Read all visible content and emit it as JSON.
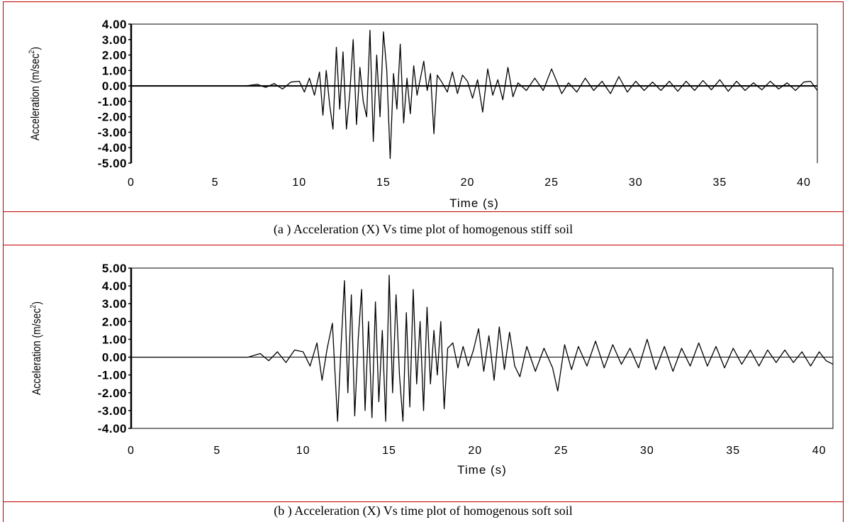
{
  "chart_data": [
    {
      "type": "line",
      "caption": "(a ) Acceleration (X) Vs time plot of homogenous stiff soil",
      "xlabel": "Time (s)",
      "ylabel_main": "Acceleration (m/sec",
      "ylabel_sup": "2",
      "ylabel_end": ")",
      "xlim": [
        0,
        40.8
      ],
      "ylim": [
        -5,
        4
      ],
      "xticks": [
        0,
        5,
        10,
        15,
        20,
        25,
        30,
        35,
        40
      ],
      "yticks": [
        4,
        3,
        2,
        1,
        0,
        -1,
        -2,
        -3,
        -4,
        -5
      ],
      "ytick_labels": [
        "4.00",
        "3.00",
        "2.00",
        "1.00",
        "0.00",
        "-1.00",
        "-2.00",
        "-3.00",
        "-4.00",
        "-5.00"
      ],
      "grid": false,
      "box": "open",
      "series": [
        {
          "color": "#000000",
          "x": [
            6.8,
            7.5,
            8.0,
            8.5,
            9.0,
            9.5,
            10.0,
            10.3,
            10.6,
            10.9,
            11.2,
            11.4,
            11.6,
            11.8,
            12.0,
            12.2,
            12.4,
            12.6,
            12.8,
            13.0,
            13.2,
            13.4,
            13.6,
            13.8,
            14.0,
            14.2,
            14.4,
            14.6,
            14.8,
            15.0,
            15.2,
            15.4,
            15.6,
            15.8,
            16.0,
            16.2,
            16.4,
            16.6,
            16.8,
            17.0,
            17.2,
            17.4,
            17.6,
            17.8,
            18.0,
            18.2,
            18.5,
            18.8,
            19.1,
            19.4,
            19.7,
            20.0,
            20.3,
            20.6,
            20.9,
            21.2,
            21.5,
            21.8,
            22.1,
            22.4,
            22.7,
            23.0,
            23.5,
            24.0,
            24.5,
            25.0,
            25.3,
            25.6,
            26.0,
            26.5,
            27.0,
            27.5,
            28.0,
            28.5,
            29.0,
            29.5,
            30.0,
            30.5,
            31.0,
            31.5,
            32.0,
            32.5,
            33.0,
            33.5,
            34.0,
            34.5,
            35.0,
            35.5,
            36.0,
            36.5,
            37.0,
            37.5,
            38.0,
            38.5,
            39.0,
            39.5,
            40.0,
            40.4,
            40.8
          ],
          "y": [
            0.0,
            0.1,
            -0.1,
            0.15,
            -0.2,
            0.25,
            0.3,
            -0.4,
            0.5,
            -0.6,
            0.9,
            -1.9,
            1.0,
            -1.2,
            -2.8,
            2.5,
            -1.5,
            2.2,
            -2.8,
            -0.5,
            3.0,
            -2.5,
            1.2,
            -1.0,
            -2.0,
            3.6,
            -3.6,
            2.0,
            -2.0,
            3.5,
            1.0,
            -4.7,
            0.8,
            -1.5,
            2.7,
            -2.4,
            0.5,
            -1.8,
            1.3,
            -0.6,
            0.5,
            1.6,
            -0.3,
            0.8,
            -3.1,
            0.7,
            0.2,
            -0.4,
            0.9,
            -0.5,
            0.7,
            0.3,
            -0.8,
            0.4,
            -1.7,
            1.1,
            -0.6,
            0.4,
            -0.9,
            1.2,
            -0.7,
            0.2,
            -0.3,
            0.5,
            -0.3,
            1.1,
            0.3,
            -0.5,
            0.2,
            -0.4,
            0.5,
            -0.3,
            0.3,
            -0.5,
            0.6,
            -0.4,
            0.3,
            -0.3,
            0.25,
            -0.3,
            0.3,
            -0.35,
            0.3,
            -0.3,
            0.35,
            -0.25,
            0.4,
            -0.35,
            0.3,
            -0.3,
            0.2,
            -0.25,
            0.3,
            -0.2,
            0.2,
            -0.3,
            0.25,
            0.3,
            -0.3
          ]
        }
      ]
    },
    {
      "type": "line",
      "caption": "(b ) Acceleration (X)  Vs time plot of homogenous soft soil",
      "xlabel": "Time (s)",
      "ylabel_main": "Acceleration (m/sec",
      "ylabel_sup": "2",
      "ylabel_end": ")",
      "xlim": [
        0,
        40.8
      ],
      "ylim": [
        -4,
        5
      ],
      "xticks": [
        0,
        5,
        10,
        15,
        20,
        25,
        30,
        35,
        40
      ],
      "yticks": [
        5,
        4,
        3,
        2,
        1,
        0,
        -1,
        -2,
        -3,
        -4
      ],
      "ytick_labels": [
        "5.00",
        "4.00",
        "3.00",
        "2.00",
        "1.00",
        "0.00",
        "-1.00",
        "-2.00",
        "-3.00",
        "-4.00"
      ],
      "grid": false,
      "box": "closed",
      "series": [
        {
          "color": "#000000",
          "x": [
            0.0,
            6.8,
            7.5,
            8.0,
            8.5,
            9.0,
            9.5,
            10.0,
            10.4,
            10.8,
            11.1,
            11.4,
            11.7,
            12.0,
            12.2,
            12.4,
            12.6,
            12.8,
            13.0,
            13.2,
            13.4,
            13.6,
            13.8,
            14.0,
            14.2,
            14.4,
            14.6,
            14.8,
            15.0,
            15.2,
            15.4,
            15.6,
            15.8,
            16.0,
            16.2,
            16.4,
            16.6,
            16.8,
            17.0,
            17.2,
            17.4,
            17.6,
            17.8,
            18.0,
            18.2,
            18.4,
            18.7,
            19.0,
            19.3,
            19.6,
            19.9,
            20.2,
            20.5,
            20.8,
            21.1,
            21.4,
            21.7,
            22.0,
            22.3,
            22.6,
            23.0,
            23.5,
            24.0,
            24.5,
            24.8,
            25.2,
            25.6,
            26.0,
            26.5,
            27.0,
            27.5,
            28.0,
            28.5,
            29.0,
            29.5,
            30.0,
            30.5,
            31.0,
            31.5,
            32.0,
            32.5,
            33.0,
            33.5,
            34.0,
            34.5,
            35.0,
            35.5,
            36.0,
            36.5,
            37.0,
            37.5,
            38.0,
            38.5,
            39.0,
            39.5,
            40.0,
            40.4,
            40.8
          ],
          "y": [
            0.0,
            0.0,
            0.2,
            -0.2,
            0.3,
            -0.3,
            0.4,
            0.3,
            -0.5,
            0.8,
            -1.3,
            0.5,
            1.9,
            -3.6,
            0.5,
            4.3,
            -2.0,
            3.5,
            -3.3,
            1.0,
            3.8,
            -3.0,
            2.0,
            -3.4,
            3.1,
            -2.5,
            1.5,
            -3.6,
            4.6,
            -2.0,
            3.5,
            -1.0,
            -3.6,
            2.5,
            -2.8,
            3.8,
            -1.5,
            2.0,
            -3.0,
            2.8,
            -1.5,
            1.5,
            -1.0,
            2.0,
            -2.9,
            0.5,
            0.8,
            -0.6,
            0.6,
            -0.5,
            0.4,
            1.6,
            -0.8,
            1.2,
            -1.3,
            1.7,
            -0.7,
            1.4,
            -0.5,
            -1.1,
            0.6,
            -0.8,
            0.5,
            -0.6,
            -1.9,
            0.7,
            -0.7,
            0.6,
            -0.5,
            0.9,
            -0.6,
            0.7,
            -0.4,
            0.5,
            -0.6,
            1.0,
            -0.7,
            0.6,
            -0.8,
            0.5,
            -0.5,
            0.8,
            -0.5,
            0.6,
            -0.6,
            0.5,
            -0.4,
            0.4,
            -0.5,
            0.4,
            -0.3,
            0.4,
            -0.3,
            0.3,
            -0.5,
            0.3,
            -0.2,
            -0.4
          ]
        }
      ]
    }
  ]
}
